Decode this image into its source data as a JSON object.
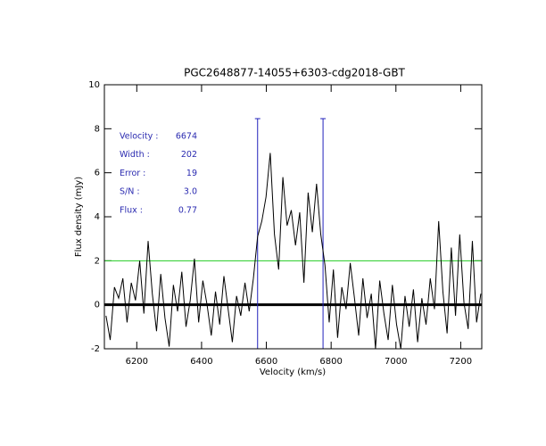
{
  "chart_data": {
    "type": "line",
    "title": "PGC2648877-14055+6303-cdg2018-GBT",
    "x_label": "Velocity (km/s)",
    "y_label": "Flux density (mJy)",
    "xlim": [
      6100,
      7265
    ],
    "ylim": [
      -2,
      10
    ],
    "xticks": [
      6200,
      6400,
      6600,
      6800,
      7000,
      7200
    ],
    "yticks": [
      -2,
      0,
      2,
      4,
      6,
      8,
      10
    ],
    "x": [
      6105,
      6118,
      6131,
      6144,
      6157,
      6170,
      6183,
      6196,
      6209,
      6222,
      6235,
      6248,
      6261,
      6274,
      6287,
      6300,
      6313,
      6326,
      6339,
      6352,
      6365,
      6378,
      6391,
      6404,
      6417,
      6430,
      6443,
      6456,
      6469,
      6482,
      6495,
      6508,
      6521,
      6534,
      6547,
      6560,
      6573,
      6586,
      6599,
      6612,
      6625,
      6638,
      6651,
      6664,
      6677,
      6690,
      6703,
      6716,
      6729,
      6742,
      6755,
      6768,
      6781,
      6794,
      6807,
      6820,
      6833,
      6846,
      6859,
      6872,
      6885,
      6898,
      6911,
      6924,
      6937,
      6950,
      6963,
      6976,
      6989,
      7002,
      7015,
      7028,
      7041,
      7054,
      7067,
      7080,
      7093,
      7106,
      7119,
      7132,
      7145,
      7158,
      7171,
      7184,
      7197,
      7210,
      7223,
      7236,
      7249,
      7262
    ],
    "series": [
      {
        "color": "#000000",
        "values": [
          -0.5,
          -1.6,
          0.8,
          0.3,
          1.2,
          -0.8,
          1.0,
          0.2,
          2.0,
          -0.4,
          2.9,
          0.5,
          -1.2,
          1.4,
          -0.6,
          -1.9,
          0.9,
          -0.3,
          1.5,
          -1.0,
          0.2,
          2.1,
          -0.8,
          1.1,
          0.0,
          -1.4,
          0.6,
          -0.9,
          1.3,
          -0.2,
          -1.7,
          0.4,
          -0.5,
          1.0,
          -0.3,
          1.2,
          3.1,
          3.8,
          4.9,
          6.9,
          3.2,
          1.6,
          5.8,
          3.6,
          4.3,
          2.7,
          4.2,
          1.0,
          5.1,
          3.3,
          5.5,
          3.2,
          1.8,
          -0.8,
          1.6,
          -1.5,
          0.8,
          -0.2,
          1.9,
          0.3,
          -1.4,
          1.2,
          -0.6,
          0.5,
          -2.0,
          1.1,
          -0.4,
          -1.6,
          0.9,
          -0.9,
          -2.0,
          0.4,
          -1.0,
          0.7,
          -1.7,
          0.3,
          -0.9,
          1.2,
          -0.2,
          3.8,
          0.6,
          -1.3,
          2.6,
          -0.5,
          3.2,
          0.1,
          -1.1,
          2.9,
          -0.8,
          0.5
        ]
      }
    ],
    "hline": {
      "value": 2,
      "color": "#22cc22"
    },
    "markers": {
      "values": [
        6573,
        6775
      ],
      "color": "#2222bb"
    },
    "annotations": [
      {
        "label": "Velocity :",
        "value": "6674"
      },
      {
        "label": "Width :",
        "value": "202"
      },
      {
        "label": "Error :",
        "value": "19"
      },
      {
        "label": "S/N :",
        "value": "3.0"
      },
      {
        "label": "Flux :",
        "value": "0.77"
      }
    ]
  }
}
